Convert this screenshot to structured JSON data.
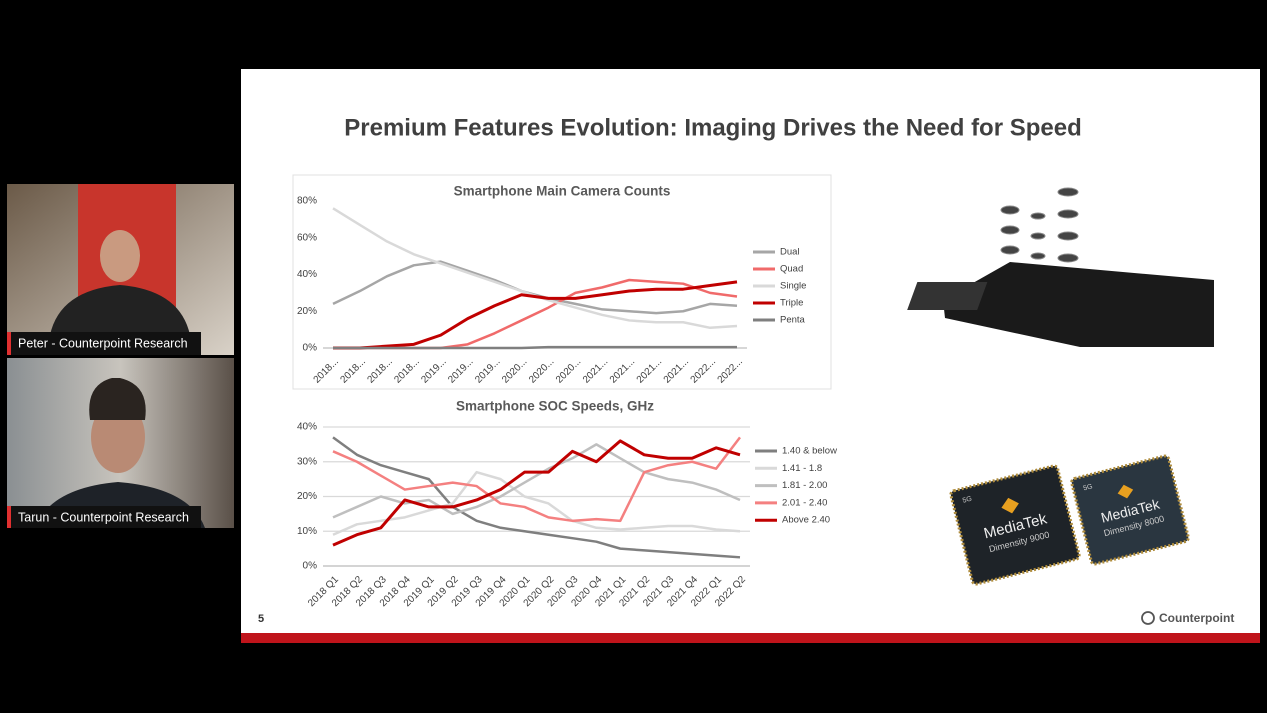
{
  "participants": [
    {
      "name": "Peter - Counterpoint Research"
    },
    {
      "name": "Tarun - Counterpoint Research"
    }
  ],
  "slide": {
    "title": "Premium Features Evolution:  Imaging Drives the Need for Speed",
    "page_number": "5",
    "logo": "Counterpoint",
    "products": [
      {
        "badge": "5G",
        "brand": "MediaTek",
        "model": "Dimensity 9000"
      },
      {
        "badge": "5G",
        "brand": "MediaTek",
        "model": "Dimensity 8000"
      }
    ]
  },
  "chart_data": [
    {
      "type": "line",
      "title": "Smartphone Main Camera Counts",
      "grid": false,
      "categories": [
        "2018...",
        "2018...",
        "2018...",
        "2018...",
        "2019...",
        "2019...",
        "2019...",
        "2020...",
        "2020...",
        "2020...",
        "2021...",
        "2021...",
        "2021...",
        "2021...",
        "2022...",
        "2022..."
      ],
      "ylim": [
        0,
        80
      ],
      "yticks": [
        {
          "value": 0,
          "label": "0%"
        },
        {
          "value": 20,
          "label": "20%"
        },
        {
          "value": 40,
          "label": "40%"
        },
        {
          "value": 60,
          "label": "60%"
        },
        {
          "value": 80,
          "label": "80%"
        }
      ],
      "series": [
        {
          "name": "Dual",
          "color": "#a6a6a6",
          "values": [
            24,
            31,
            39,
            45,
            47,
            42,
            37,
            31,
            27,
            24,
            21,
            20,
            19,
            20,
            24,
            23
          ]
        },
        {
          "name": "Quad",
          "color": "#f06a6a",
          "values": [
            0,
            0,
            0,
            0,
            0,
            2,
            8,
            15,
            22,
            30,
            33,
            37,
            36,
            35,
            30,
            28
          ]
        },
        {
          "name": "Single",
          "color": "#d9d9d9",
          "values": [
            76,
            67,
            58,
            51,
            46,
            41,
            36,
            31,
            26,
            22,
            18,
            15,
            14,
            14,
            11,
            12
          ]
        },
        {
          "name": "Triple",
          "color": "#c00000",
          "values": [
            0,
            0,
            1,
            2,
            7,
            16,
            23,
            29,
            27,
            27,
            29,
            31,
            32,
            32,
            34,
            36
          ]
        },
        {
          "name": "Penta",
          "color": "#7f7f7f",
          "values": [
            0,
            0,
            0,
            0,
            0,
            0,
            0,
            0,
            0.5,
            0.5,
            0.5,
            0.5,
            0.5,
            0.5,
            0.5,
            0.5
          ]
        }
      ]
    },
    {
      "type": "line",
      "title": "Smartphone SOC Speeds, GHz",
      "grid": true,
      "categories": [
        "2018 Q1",
        "2018 Q2",
        "2018 Q3",
        "2018 Q4",
        "2019 Q1",
        "2019 Q2",
        "2019 Q3",
        "2019 Q4",
        "2020 Q1",
        "2020 Q2",
        "2020 Q3",
        "2020 Q4",
        "2021 Q1",
        "2021 Q2",
        "2021 Q3",
        "2021 Q4",
        "2022 Q1",
        "2022 Q2"
      ],
      "ylim": [
        0,
        40
      ],
      "yticks": [
        {
          "value": 0,
          "label": "0%"
        },
        {
          "value": 10,
          "label": "10%"
        },
        {
          "value": 20,
          "label": "20%"
        },
        {
          "value": 30,
          "label": "30%"
        },
        {
          "value": 40,
          "label": "40%"
        }
      ],
      "series": [
        {
          "name": "1.40 & below",
          "color": "#7f7f7f",
          "values": [
            37,
            32,
            29,
            27,
            25,
            17,
            13,
            11,
            10,
            9,
            8,
            7,
            5,
            4.5,
            4,
            3.5,
            3,
            2.5
          ]
        },
        {
          "name": "1.41 - 1.8",
          "color": "#d9d9d9",
          "values": [
            9,
            12,
            13,
            14,
            16,
            18,
            27,
            25,
            20,
            18,
            13,
            11,
            10.5,
            11,
            11.5,
            11.5,
            10.5,
            10
          ]
        },
        {
          "name": "1.81 - 2.00",
          "color": "#bfbfbf",
          "values": [
            14,
            17,
            20,
            18,
            19,
            15,
            17,
            20,
            24,
            28,
            31,
            35,
            31,
            27,
            25,
            24,
            22,
            19
          ]
        },
        {
          "name": "2.01 - 2.40",
          "color": "#f48080",
          "values": [
            33,
            30,
            26,
            22,
            23,
            24,
            23,
            18,
            17,
            14,
            13,
            13.5,
            13,
            27,
            29,
            30,
            28,
            37
          ]
        },
        {
          "name": "Above 2.40",
          "color": "#c00000",
          "values": [
            6,
            9,
            11,
            19,
            17,
            17,
            19,
            22,
            27,
            27,
            33,
            30,
            36,
            32,
            31,
            31,
            34,
            32
          ]
        }
      ]
    }
  ]
}
